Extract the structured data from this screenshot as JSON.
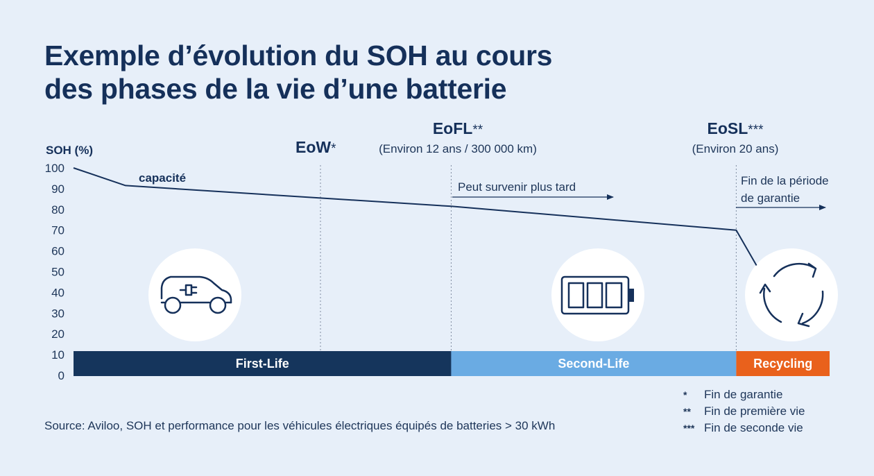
{
  "title": {
    "line1": "Exemple d’évolution du SOH au cours",
    "line2": "des phases de la vie d’une batterie"
  },
  "chart_data": {
    "type": "line",
    "ylabel": "SOH (%)",
    "ylim": [
      0,
      100
    ],
    "yticks": [
      "0",
      "10",
      "20",
      "30",
      "40",
      "50",
      "60",
      "70",
      "80",
      "90",
      "100"
    ],
    "series": [
      {
        "name": "capacité",
        "x_position": [
          0,
          0.0688,
          0.3266,
          0.4995,
          0.8765,
          0.9033
        ],
        "values": [
          100,
          91.5,
          85.5,
          81.5,
          70,
          53
        ]
      }
    ],
    "milestones": [
      {
        "label": "EoW",
        "mark": "*",
        "note": "",
        "x_position": 0.3266
      },
      {
        "label": "EoFL",
        "mark": "**",
        "note": "(Environ 12 ans / 300 000 km)",
        "x_position": 0.4995
      },
      {
        "label": "EoSL",
        "mark": "***",
        "note": "(Environ 20 ans)",
        "x_position": 0.8765
      }
    ],
    "annotations": [
      {
        "text": "Peut survenir plus tard"
      },
      {
        "lines": [
          "Fin de la période",
          "de garantie"
        ]
      }
    ],
    "phases": [
      {
        "label": "First-Life",
        "color": "#15355c",
        "start": 0,
        "end": 0.4995
      },
      {
        "label": "Second-Life",
        "color": "#6aabe3",
        "start": 0.4995,
        "end": 0.8765
      },
      {
        "label": "Recycling",
        "color": "#e9611c",
        "start": 0.8765,
        "end": 1.0
      }
    ],
    "icons": [
      "electric-car-icon",
      "battery-icon",
      "recycle-icon"
    ],
    "grid": false
  },
  "footnotes": [
    {
      "mark": "*",
      "text": "Fin de garantie"
    },
    {
      "mark": "**",
      "text": "Fin de première vie"
    },
    {
      "mark": "***",
      "text": "Fin de seconde vie"
    }
  ],
  "source": "Source: Aviloo, SOH et performance pour les véhicules électriques équipés de batteries > 30 kWh",
  "colors": {
    "background": "#e7eff9",
    "navy": "#15305a",
    "first_life": "#15355c",
    "second_life": "#6aabe3",
    "recycling": "#e9611c"
  }
}
